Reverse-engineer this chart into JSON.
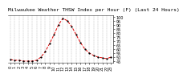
{
  "title": "Milwaukee Weather THSW Index per Hour (F) (Last 24 Hours)",
  "x_hours": [
    0,
    1,
    2,
    3,
    4,
    5,
    6,
    7,
    8,
    9,
    10,
    11,
    12,
    13,
    14,
    15,
    16,
    17,
    18,
    19,
    20,
    21,
    22,
    23
  ],
  "y_values": [
    47,
    46,
    46,
    45,
    45,
    45,
    46,
    50,
    57,
    67,
    78,
    90,
    98,
    95,
    88,
    78,
    68,
    60,
    55,
    52,
    50,
    49,
    48,
    50
  ],
  "line_color": "#dd0000",
  "marker_color": "#000000",
  "bg_color": "#ffffff",
  "grid_color": "#888888",
  "ylim": [
    43,
    102
  ],
  "ytick_positions": [
    45,
    50,
    55,
    60,
    65,
    70,
    75,
    80,
    85,
    90,
    95,
    100
  ],
  "ytick_labels": [
    "45",
    "50",
    "55",
    "60",
    "65",
    "70",
    "75",
    "80",
    "85",
    "90",
    "95",
    "100"
  ],
  "title_fontsize": 4.5,
  "tick_fontsize": 3.5,
  "line_width": 0.7,
  "marker_size": 1.2
}
